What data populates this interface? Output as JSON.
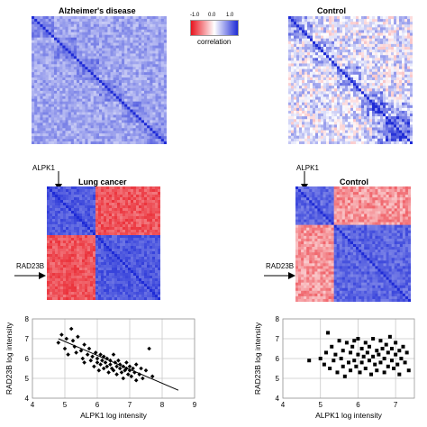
{
  "legend": {
    "min_label": "-1.0",
    "mid_label": "0.0",
    "max_label": "1.0",
    "caption": "correlation",
    "neg_color": "#e8141e",
    "mid_color": "#ffffff",
    "pos_color": "#1e2bd6"
  },
  "panels": {
    "alz": {
      "title": "Alzheimer's disease"
    },
    "alz_control": {
      "title": "Control"
    },
    "lung": {
      "title": "Lung cancer"
    },
    "lung_control": {
      "title": "Control"
    }
  },
  "annotations": {
    "alpk1_left": "ALPK1",
    "alpk1_right": "ALPK1",
    "rad23b_left": "RAD23B",
    "rad23b_right": "RAD23B"
  },
  "colors": {
    "heat_blue": "#4a5ccf",
    "heat_red": "#e05a5a",
    "muted_blue": "#a9b0d6",
    "trend_line": "#000000",
    "points": "#000000"
  },
  "chart_data": [
    {
      "type": "heatmap",
      "title": "Alzheimer's disease",
      "value_range": [
        -1.0,
        1.0
      ],
      "pattern": "mostly weak positive correlation with faint blocks"
    },
    {
      "type": "heatmap",
      "title": "Control",
      "value_range": [
        -1.0,
        1.0
      ],
      "pattern": "mixed weak correlation with scattered red and blue"
    },
    {
      "type": "heatmap",
      "title": "Lung cancer",
      "value_range": [
        -1.0,
        1.0
      ],
      "pattern": "two strong blocks: blue top-left and bottom-right, red off-diagonal"
    },
    {
      "type": "heatmap",
      "title": "Control",
      "value_range": [
        -1.0,
        1.0
      ],
      "pattern": "two blocks: small blue top-left, large blue bottom-right, light red off-diagonal"
    },
    {
      "type": "scatter",
      "xlabel": "ALPK1 log intensity",
      "ylabel": "RAD23B log intensity",
      "xlim": [
        4,
        9
      ],
      "ylim": [
        4,
        8
      ],
      "xticks": [
        "4",
        "5",
        "6",
        "7",
        "8",
        "9"
      ],
      "yticks": [
        "4",
        "5",
        "6",
        "7",
        "8"
      ],
      "grid": true,
      "trendline": {
        "x": [
          4.8,
          8.5
        ],
        "y": [
          7.0,
          4.4
        ]
      },
      "points": [
        [
          4.8,
          6.8
        ],
        [
          4.9,
          7.2
        ],
        [
          5.0,
          6.5
        ],
        [
          5.05,
          7.0
        ],
        [
          5.1,
          6.2
        ],
        [
          5.2,
          7.5
        ],
        [
          5.25,
          6.9
        ],
        [
          5.3,
          6.6
        ],
        [
          5.35,
          6.3
        ],
        [
          5.4,
          7.1
        ],
        [
          5.5,
          6.4
        ],
        [
          5.55,
          6.0
        ],
        [
          5.6,
          6.7
        ],
        [
          5.6,
          5.8
        ],
        [
          5.7,
          6.2
        ],
        [
          5.75,
          6.5
        ],
        [
          5.8,
          5.9
        ],
        [
          5.85,
          6.1
        ],
        [
          5.9,
          5.6
        ],
        [
          5.95,
          6.3
        ],
        [
          6.0,
          5.8
        ],
        [
          6.0,
          6.0
        ],
        [
          6.05,
          5.4
        ],
        [
          6.1,
          6.2
        ],
        [
          6.1,
          5.7
        ],
        [
          6.15,
          5.9
        ],
        [
          6.2,
          5.5
        ],
        [
          6.2,
          6.1
        ],
        [
          6.25,
          5.8
        ],
        [
          6.3,
          5.6
        ],
        [
          6.3,
          6.0
        ],
        [
          6.35,
          5.3
        ],
        [
          6.4,
          5.9
        ],
        [
          6.4,
          5.7
        ],
        [
          6.45,
          5.5
        ],
        [
          6.5,
          6.2
        ],
        [
          6.5,
          5.4
        ],
        [
          6.55,
          5.8
        ],
        [
          6.6,
          5.6
        ],
        [
          6.6,
          5.2
        ],
        [
          6.65,
          5.9
        ],
        [
          6.7,
          5.5
        ],
        [
          6.7,
          5.7
        ],
        [
          6.75,
          5.3
        ],
        [
          6.8,
          5.6
        ],
        [
          6.8,
          5.0
        ],
        [
          6.85,
          5.4
        ],
        [
          6.9,
          5.8
        ],
        [
          6.9,
          5.5
        ],
        [
          6.95,
          5.2
        ],
        [
          7.0,
          5.6
        ],
        [
          7.0,
          5.4
        ],
        [
          7.05,
          5.1
        ],
        [
          7.1,
          5.5
        ],
        [
          7.15,
          5.3
        ],
        [
          7.2,
          4.9
        ],
        [
          7.2,
          5.7
        ],
        [
          7.3,
          5.2
        ],
        [
          7.35,
          5.5
        ],
        [
          7.4,
          5.0
        ],
        [
          7.5,
          5.4
        ],
        [
          7.6,
          6.5
        ],
        [
          7.7,
          5.1
        ]
      ]
    },
    {
      "type": "scatter",
      "xlabel": "ALPK1 log intensity",
      "ylabel": "RAD23B log intensity",
      "xlim": [
        4,
        7.5
      ],
      "ylim": [
        4,
        8
      ],
      "xticks": [
        "4",
        "5",
        "6",
        "7"
      ],
      "yticks": [
        "4",
        "5",
        "6",
        "7",
        "8"
      ],
      "grid": true,
      "points": [
        [
          4.7,
          5.9
        ],
        [
          5.0,
          6.0
        ],
        [
          5.1,
          5.7
        ],
        [
          5.15,
          6.3
        ],
        [
          5.2,
          7.3
        ],
        [
          5.25,
          5.5
        ],
        [
          5.3,
          6.6
        ],
        [
          5.35,
          5.9
        ],
        [
          5.4,
          6.2
        ],
        [
          5.45,
          5.3
        ],
        [
          5.5,
          6.9
        ],
        [
          5.55,
          6.0
        ],
        [
          5.6,
          6.4
        ],
        [
          5.6,
          5.6
        ],
        [
          5.65,
          5.1
        ],
        [
          5.7,
          6.8
        ],
        [
          5.75,
          5.8
        ],
        [
          5.8,
          6.3
        ],
        [
          5.8,
          5.4
        ],
        [
          5.85,
          6.6
        ],
        [
          5.9,
          5.9
        ],
        [
          5.9,
          6.9
        ],
        [
          5.95,
          5.6
        ],
        [
          6.0,
          6.2
        ],
        [
          6.0,
          7.0
        ],
        [
          6.05,
          5.3
        ],
        [
          6.1,
          6.5
        ],
        [
          6.1,
          5.8
        ],
        [
          6.15,
          6.1
        ],
        [
          6.2,
          6.8
        ],
        [
          6.2,
          5.5
        ],
        [
          6.25,
          6.3
        ],
        [
          6.3,
          5.9
        ],
        [
          6.3,
          6.6
        ],
        [
          6.35,
          5.2
        ],
        [
          6.4,
          6.1
        ],
        [
          6.4,
          7.0
        ],
        [
          6.45,
          5.7
        ],
        [
          6.5,
          6.4
        ],
        [
          6.5,
          5.4
        ],
        [
          6.55,
          6.2
        ],
        [
          6.6,
          6.9
        ],
        [
          6.6,
          5.8
        ],
        [
          6.65,
          6.5
        ],
        [
          6.7,
          6.0
        ],
        [
          6.7,
          5.3
        ],
        [
          6.75,
          6.7
        ],
        [
          6.8,
          5.6
        ],
        [
          6.8,
          6.3
        ],
        [
          6.85,
          7.1
        ],
        [
          6.9,
          5.9
        ],
        [
          6.9,
          6.5
        ],
        [
          6.95,
          5.5
        ],
        [
          7.0,
          6.2
        ],
        [
          7.0,
          6.8
        ],
        [
          7.05,
          5.7
        ],
        [
          7.1,
          6.4
        ],
        [
          7.1,
          5.2
        ],
        [
          7.15,
          6.0
        ],
        [
          7.2,
          6.6
        ],
        [
          7.25,
          5.8
        ],
        [
          7.3,
          6.3
        ],
        [
          7.35,
          5.4
        ]
      ]
    }
  ]
}
